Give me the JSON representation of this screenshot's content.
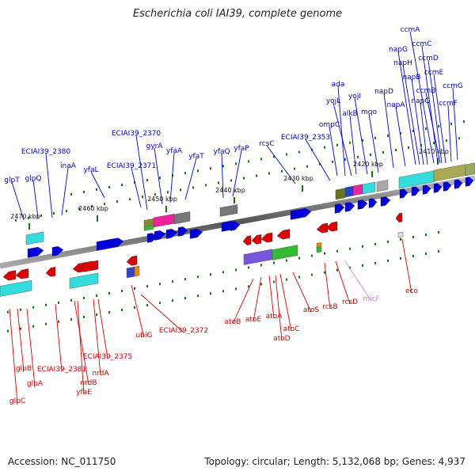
{
  "title": "Escherichia coli IAI39, complete genome",
  "accession_text": "Accession: NC_011750",
  "summary_text": "Topology: circular; Length: 5,132,068 bp; Genes: 4,937",
  "kbp_labels": [
    "2470 kbp",
    "2460 kbp",
    "2450 kbp",
    "2440 kbp",
    "2430 kbp",
    "2420 kbp",
    "2410 kbp"
  ],
  "upper_genes": [
    "glpT",
    "glpQ",
    "ECIAI39_2380",
    "inaA",
    "yfaL",
    "ECIAI39_2370",
    "ECIAI39_2371",
    "gyrA",
    "yfaA",
    "yfaT",
    "yfaQ",
    "yfaP",
    "rcsC",
    "ECIAI39_2353",
    "ompC",
    "ada",
    "yojL",
    "alkB",
    "yojI",
    "mqo",
    "napD",
    "napA",
    "napG",
    "napH",
    "napB",
    "napC",
    "ccmA",
    "ccmC",
    "ccmD",
    "ccmE",
    "ccmB",
    "ccmF",
    "ccmG"
  ],
  "lower_genes": [
    "glpC",
    "glpB",
    "glpA",
    "ECIAI39_2381",
    "nrdB",
    "yfaE",
    "nrdA",
    "ECIAI39_2375",
    "ubiG",
    "ECIAI39_2372",
    "atoB",
    "atoE",
    "atoA",
    "atoD",
    "atoC",
    "atoS",
    "rcsB",
    "rcsD",
    "micF",
    "eco"
  ],
  "colors": {
    "forward": "#0000dd",
    "reverse": "#dd0000",
    "rna": "#dd88cc",
    "cyan": "#33dddd",
    "magenta": "#ee2299",
    "purple": "#7755dd",
    "green": "#33bb33",
    "gray": "#777777",
    "olive": "#aaaa55",
    "tick": "#117711"
  }
}
